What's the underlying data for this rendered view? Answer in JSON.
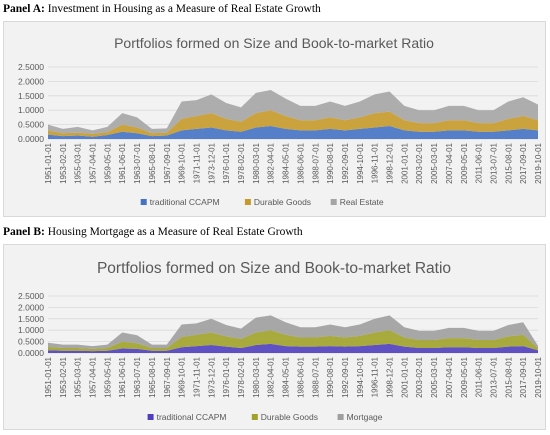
{
  "panels": [
    {
      "label": "Panel A:",
      "caption": "Investment in Housing as a Measure of Real Estate Growth"
    },
    {
      "label": "Panel B:",
      "caption": "Housing Mortgage as a Measure of Real Estate Growth"
    }
  ],
  "chart_data": [
    {
      "type": "area",
      "stacked": true,
      "title": "Portfolios formed on Size and Book-to-market Ratio",
      "xlabel": "",
      "ylabel": "",
      "ylim": [
        0,
        2.5
      ],
      "yticks": [
        "0.0000",
        "0.5000",
        "1.0000",
        "1.5000",
        "2.0000",
        "2.5000"
      ],
      "grid": true,
      "legend_position": "bottom",
      "x_tick_labels": [
        "1951-01-01",
        "1953-02-01",
        "1955-03-01",
        "1957-04-01",
        "1959-05-01",
        "1961-06-01",
        "1963-07-01",
        "1965-08-01",
        "1967-09-01",
        "1969-10-01",
        "1971-11-01",
        "1973-12-01",
        "1976-01-01",
        "1978-02-01",
        "1980-03-01",
        "1982-04-01",
        "1984-05-01",
        "1986-06-01",
        "1988-07-01",
        "1990-08-01",
        "1992-09-01",
        "1994-10-01",
        "1996-11-01",
        "1998-12-01",
        "2001-01-01",
        "2003-02-01",
        "2005-03-01",
        "2007-04-01",
        "2009-05-01",
        "2011-06-01",
        "2013-07-01",
        "2015-08-01",
        "2017-09-01",
        "2019-10-01"
      ],
      "x": [
        "1951",
        "1953",
        "1955",
        "1957",
        "1959",
        "1961",
        "1963",
        "1965",
        "1967",
        "1969",
        "1971",
        "1973",
        "1976",
        "1978",
        "1980",
        "1982",
        "1984",
        "1986",
        "1988",
        "1990",
        "1992",
        "1994",
        "1996",
        "1998",
        "2001",
        "2003",
        "2005",
        "2007",
        "2009",
        "2011",
        "2013",
        "2015",
        "2017",
        "2019"
      ],
      "series": [
        {
          "name": "traditional CCAPM",
          "color": "#4472c4",
          "values": [
            0.15,
            0.1,
            0.12,
            0.08,
            0.14,
            0.25,
            0.2,
            0.1,
            0.12,
            0.3,
            0.35,
            0.4,
            0.3,
            0.25,
            0.4,
            0.45,
            0.35,
            0.3,
            0.3,
            0.35,
            0.3,
            0.35,
            0.4,
            0.45,
            0.3,
            0.25,
            0.25,
            0.3,
            0.3,
            0.25,
            0.25,
            0.3,
            0.35,
            0.3
          ]
        },
        {
          "name": "Durable Goods",
          "color": "#c69a2a",
          "values": [
            0.15,
            0.1,
            0.1,
            0.1,
            0.1,
            0.25,
            0.2,
            0.1,
            0.1,
            0.4,
            0.45,
            0.5,
            0.4,
            0.35,
            0.5,
            0.55,
            0.45,
            0.35,
            0.35,
            0.4,
            0.35,
            0.4,
            0.5,
            0.5,
            0.35,
            0.3,
            0.3,
            0.35,
            0.35,
            0.3,
            0.3,
            0.4,
            0.45,
            0.35
          ]
        },
        {
          "name": "Real Estate",
          "color": "#a5a5a5",
          "values": [
            0.2,
            0.15,
            0.2,
            0.12,
            0.18,
            0.4,
            0.35,
            0.15,
            0.15,
            0.6,
            0.55,
            0.65,
            0.55,
            0.5,
            0.7,
            0.7,
            0.6,
            0.5,
            0.5,
            0.55,
            0.5,
            0.55,
            0.65,
            0.7,
            0.5,
            0.45,
            0.45,
            0.5,
            0.5,
            0.45,
            0.45,
            0.6,
            0.65,
            0.55
          ]
        }
      ]
    },
    {
      "type": "area",
      "stacked": true,
      "title": "Portfolios formed on Size and Book-to-market Ratio",
      "xlabel": "",
      "ylabel": "",
      "ylim": [
        0,
        2.5
      ],
      "yticks": [
        "0.0000",
        "0.5000",
        "1.0000",
        "1.5000",
        "2.0000",
        "2.5000"
      ],
      "grid": true,
      "legend_position": "bottom",
      "x_tick_labels": [
        "1951-01-01",
        "1953-02-01",
        "1955-03-01",
        "1957-04-01",
        "1959-05-01",
        "1961-06-01",
        "1963-07-01",
        "1965-08-01",
        "1967-09-01",
        "1969-10-01",
        "1971-11-01",
        "1973-12-01",
        "1976-01-01",
        "1978-02-01",
        "1980-03-01",
        "1982-04-01",
        "1984-05-01",
        "1986-06-01",
        "1988-07-01",
        "1990-08-01",
        "1992-09-01",
        "1994-10-01",
        "1996-11-01",
        "1998-12-01",
        "2001-01-01",
        "2003-02-01",
        "2005-03-01",
        "2007-04-01",
        "2009-05-01",
        "2011-06-01",
        "2013-07-01",
        "2015-08-01",
        "2017-09-01",
        "2019-10-01"
      ],
      "x": [
        "1951",
        "1953",
        "1955",
        "1957",
        "1959",
        "1961",
        "1963",
        "1965",
        "1967",
        "1969",
        "1971",
        "1973",
        "1976",
        "1978",
        "1980",
        "1982",
        "1984",
        "1986",
        "1988",
        "1990",
        "1992",
        "1994",
        "1996",
        "1998",
        "2001",
        "2003",
        "2005",
        "2007",
        "2009",
        "2011",
        "2013",
        "2015",
        "2017",
        "2019"
      ],
      "series": [
        {
          "name": "traditional CCAPM",
          "color": "#4f3fbf",
          "values": [
            0.12,
            0.1,
            0.1,
            0.08,
            0.1,
            0.2,
            0.18,
            0.1,
            0.1,
            0.25,
            0.3,
            0.35,
            0.28,
            0.22,
            0.35,
            0.4,
            0.3,
            0.28,
            0.28,
            0.3,
            0.28,
            0.3,
            0.35,
            0.4,
            0.28,
            0.22,
            0.22,
            0.25,
            0.25,
            0.22,
            0.22,
            0.28,
            0.3,
            0.12
          ]
        },
        {
          "name": "Durable Goods",
          "color": "#a0a229",
          "values": [
            0.15,
            0.12,
            0.12,
            0.1,
            0.12,
            0.3,
            0.25,
            0.12,
            0.12,
            0.45,
            0.5,
            0.55,
            0.45,
            0.4,
            0.55,
            0.6,
            0.5,
            0.4,
            0.4,
            0.45,
            0.4,
            0.45,
            0.55,
            0.6,
            0.4,
            0.35,
            0.35,
            0.4,
            0.4,
            0.35,
            0.35,
            0.45,
            0.5,
            0.1
          ]
        },
        {
          "name": "Mortgage",
          "color": "#9e9e9e",
          "values": [
            0.18,
            0.15,
            0.15,
            0.12,
            0.15,
            0.4,
            0.35,
            0.15,
            0.15,
            0.55,
            0.5,
            0.6,
            0.5,
            0.45,
            0.65,
            0.65,
            0.55,
            0.45,
            0.45,
            0.5,
            0.45,
            0.5,
            0.6,
            0.65,
            0.45,
            0.4,
            0.4,
            0.45,
            0.45,
            0.4,
            0.4,
            0.5,
            0.55,
            0.1
          ]
        }
      ]
    }
  ]
}
